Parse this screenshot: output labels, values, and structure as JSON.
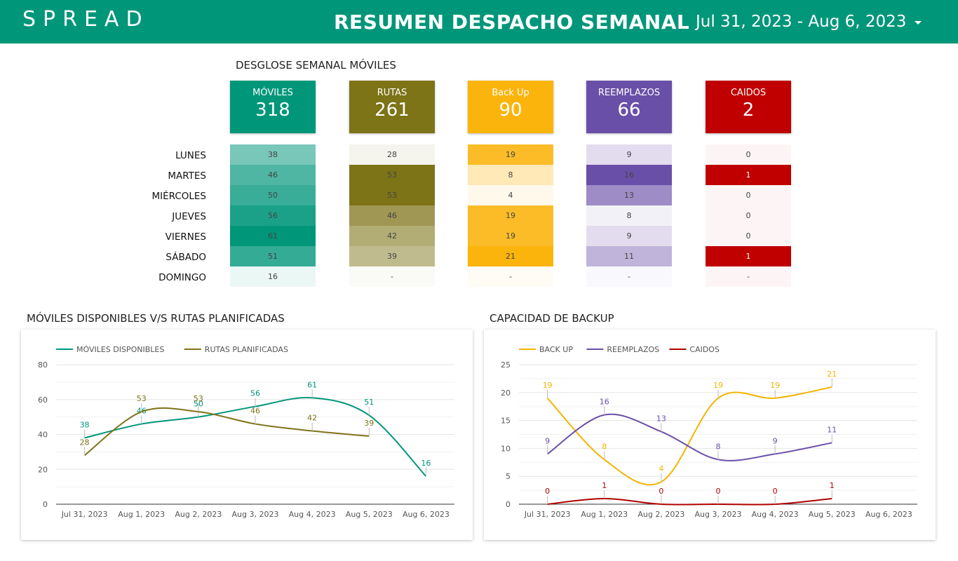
{
  "header": {
    "logo": "SPREAD",
    "title": "RESUMEN DESPACHO SEMANAL",
    "date_range": "Jul 31, 2023 - Aug 6, 2023"
  },
  "breakdown": {
    "title": "DESGLOSE SEMANAL MÓVILES",
    "days": [
      "LUNES",
      "MARTES",
      "MIÉRCOLES",
      "JUEVES",
      "VIERNES",
      "SÁBADO",
      "DOMINGO"
    ],
    "kpis": [
      {
        "label": "MÓVILES",
        "value": "318",
        "color": "#00967a",
        "values": [
          "38",
          "46",
          "50",
          "56",
          "61",
          "51",
          "16"
        ]
      },
      {
        "label": "RUTAS",
        "value": "261",
        "color": "#7d7317",
        "values": [
          "28",
          "53",
          "53",
          "46",
          "42",
          "39",
          "-"
        ]
      },
      {
        "label": "Back Up",
        "value": "90",
        "color": "#fbb40c",
        "values": [
          "19",
          "8",
          "4",
          "19",
          "19",
          "21",
          "-"
        ]
      },
      {
        "label": "REEMPLAZOS",
        "value": "66",
        "color": "#6a4fa8",
        "values": [
          "9",
          "16",
          "13",
          "8",
          "9",
          "11",
          "-"
        ]
      },
      {
        "label": "CAIDOS",
        "value": "2",
        "color": "#c00000",
        "values": [
          "0",
          "1",
          "0",
          "0",
          "0",
          "1",
          "-"
        ]
      }
    ]
  },
  "chart_data": [
    {
      "type": "line",
      "title": "MÓVILES DISPONIBLES V/S RUTAS PLANIFICADAS",
      "categories": [
        "Jul 31, 2023",
        "Aug 1, 2023",
        "Aug 2, 2023",
        "Aug 3, 2023",
        "Aug 4, 2023",
        "Aug 5, 2023",
        "Aug 6, 2023"
      ],
      "ylim": [
        0,
        80
      ],
      "yticks": [
        0,
        20,
        40,
        60,
        80
      ],
      "legend": "top-left",
      "grid": true,
      "series": [
        {
          "name": "MÓVILES DISPONIBLES",
          "color": "#00967a",
          "values": [
            38,
            46,
            50,
            56,
            61,
            51,
            16
          ]
        },
        {
          "name": "RUTAS PLANIFICADAS",
          "color": "#7d7317",
          "values": [
            28,
            53,
            53,
            46,
            42,
            39,
            null
          ]
        }
      ]
    },
    {
      "type": "line",
      "title": "CAPACIDAD DE BACKUP",
      "categories": [
        "Jul 31, 2023",
        "Aug 1, 2023",
        "Aug 2, 2023",
        "Aug 3, 2023",
        "Aug 4, 2023",
        "Aug 5, 2023",
        "Aug 6, 2023"
      ],
      "ylim": [
        0,
        25
      ],
      "yticks": [
        0,
        5,
        10,
        15,
        20,
        25
      ],
      "legend": "top-left",
      "grid": true,
      "series": [
        {
          "name": "BACK UP",
          "color": "#f4b400",
          "values": [
            19,
            8,
            4,
            19,
            19,
            21,
            null
          ]
        },
        {
          "name": "REEMPLAZOS",
          "color": "#6a4fa8",
          "values": [
            9,
            16,
            13,
            8,
            9,
            11,
            null
          ]
        },
        {
          "name": "CAIDOS",
          "color": "#b00000",
          "values": [
            0,
            1,
            0,
            0,
            0,
            1,
            null
          ]
        }
      ]
    }
  ]
}
